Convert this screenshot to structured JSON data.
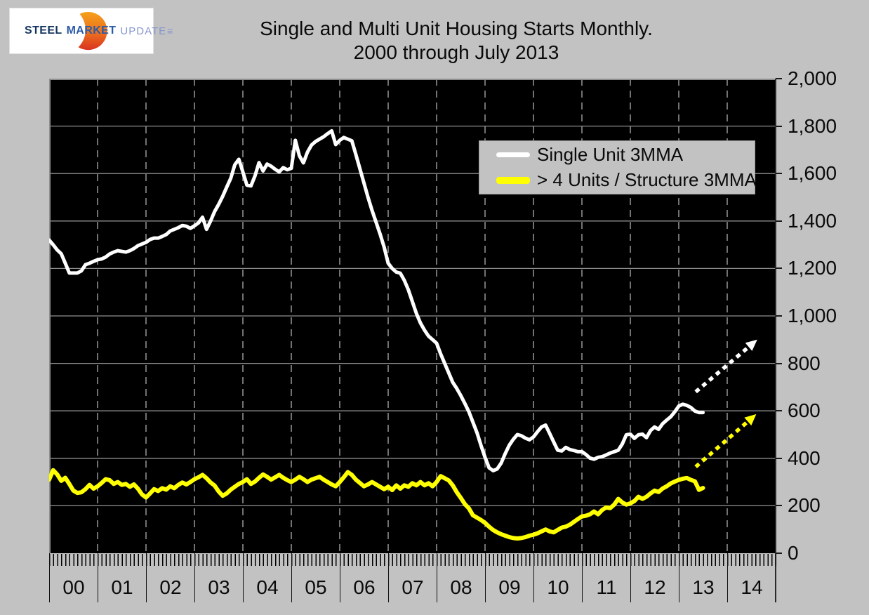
{
  "logo": {
    "words": {
      "steel": "STEEL",
      "market": "MARKET",
      "update": "UPDATE"
    },
    "glyph": "≡",
    "colors": {
      "steel": "#15355e",
      "market": "#2a5aa8",
      "update": "#8695cc",
      "crescent_top": "#f5a11c",
      "crescent_mid": "#ec6f1d",
      "crescent_bottom": "#d93420"
    }
  },
  "title": {
    "line1": "Single and Multi Unit Housing Starts Monthly.",
    "line2": "2000 through July 2013"
  },
  "colors": {
    "page_background": "#c2c2c2",
    "plot_background": "#000000",
    "grid": "#8f8f8f",
    "axis": "#1a1a1a",
    "single_unit": "#ffffff",
    "multi_unit": "#ffff00"
  },
  "chart_data": {
    "type": "line",
    "title": "Single and Multi Unit Housing Starts Monthly. 2000 through July 2013",
    "x_unit": "month",
    "x_start": "2000-01",
    "x_end": "2013-07",
    "x_axis_years": [
      "00",
      "01",
      "02",
      "03",
      "04",
      "05",
      "06",
      "07",
      "08",
      "09",
      "10",
      "11",
      "12",
      "13",
      "14"
    ],
    "x_axis_span_years": 15,
    "y_axis": {
      "min": 0,
      "max": 2000,
      "step": 200,
      "tick_labels": [
        "0",
        "200",
        "400",
        "600",
        "800",
        "1,000",
        "1,200",
        "1,400",
        "1,600",
        "1,800",
        "2,000"
      ]
    },
    "grid": {
      "horizontal": "solid",
      "vertical": "dashed"
    },
    "legend_position": "inside-top-right",
    "legend": [
      {
        "label": "Single Unit 3MMA",
        "color": "#ffffff",
        "swatch_height": 7
      },
      {
        "label": "> 4 Units / Structure 3MMA",
        "color": "#ffff00",
        "swatch_height": 10
      }
    ],
    "series": [
      {
        "name": "Single Unit 3MMA",
        "color": "#ffffff",
        "width": 5,
        "values": [
          1320,
          1300,
          1278,
          1262,
          1222,
          1181,
          1181,
          1181,
          1190,
          1216,
          1222,
          1230,
          1237,
          1240,
          1248,
          1261,
          1269,
          1275,
          1272,
          1269,
          1275,
          1284,
          1296,
          1303,
          1310,
          1322,
          1328,
          1328,
          1335,
          1343,
          1358,
          1365,
          1372,
          1381,
          1378,
          1369,
          1380,
          1392,
          1416,
          1365,
          1400,
          1440,
          1470,
          1504,
          1543,
          1580,
          1637,
          1660,
          1607,
          1551,
          1548,
          1590,
          1646,
          1611,
          1640,
          1631,
          1618,
          1607,
          1625,
          1616,
          1622,
          1740,
          1675,
          1645,
          1690,
          1720,
          1735,
          1745,
          1755,
          1768,
          1780,
          1722,
          1740,
          1752,
          1745,
          1738,
          1680,
          1620,
          1560,
          1500,
          1445,
          1395,
          1345,
          1290,
          1222,
          1200,
          1185,
          1180,
          1150,
          1110,
          1060,
          1010,
          970,
          940,
          915,
          900,
          885,
          840,
          800,
          760,
          720,
          694,
          664,
          631,
          596,
          552,
          508,
          454,
          404,
          360,
          348,
          355,
          380,
          420,
          455,
          480,
          500,
          495,
          485,
          478,
          490,
          512,
          532,
          540,
          505,
          469,
          434,
          431,
          446,
          437,
          433,
          428,
          428,
          416,
          401,
          396,
          404,
          407,
          414,
          422,
          428,
          434,
          460,
          499,
          502,
          484,
          499,
          502,
          487,
          517,
          532,
          522,
          546,
          561,
          575,
          596,
          620,
          628,
          623,
          614,
          599,
          593,
          593
        ]
      },
      {
        "name": "> 4 Units / Structure 3MMA",
        "color": "#ffff00",
        "width": 6,
        "values": [
          310,
          350,
          332,
          305,
          318,
          292,
          264,
          254,
          257,
          270,
          288,
          272,
          282,
          296,
          312,
          308,
          292,
          300,
          288,
          292,
          280,
          290,
          272,
          248,
          235,
          252,
          270,
          262,
          274,
          268,
          282,
          274,
          288,
          298,
          290,
          300,
          312,
          320,
          330,
          316,
          298,
          285,
          260,
          242,
          252,
          268,
          280,
          292,
          300,
          312,
          292,
          302,
          318,
          332,
          322,
          310,
          320,
          330,
          318,
          308,
          300,
          310,
          322,
          312,
          300,
          310,
          316,
          322,
          310,
          300,
          290,
          282,
          300,
          320,
          342,
          330,
          310,
          296,
          282,
          290,
          300,
          290,
          280,
          270,
          280,
          266,
          286,
          272,
          286,
          280,
          295,
          286,
          300,
          286,
          295,
          282,
          300,
          325,
          316,
          307,
          286,
          257,
          233,
          207,
          189,
          160,
          150,
          140,
          128,
          112,
          98,
          88,
          80,
          74,
          68,
          64,
          62,
          64,
          68,
          74,
          78,
          84,
          92,
          100,
          92,
          88,
          98,
          108,
          112,
          120,
          132,
          144,
          155,
          158,
          164,
          176,
          164,
          182,
          193,
          190,
          205,
          229,
          214,
          205,
          210,
          220,
          238,
          229,
          238,
          252,
          264,
          258,
          273,
          282,
          294,
          302,
          309,
          314,
          317,
          309,
          303,
          267,
          275
        ]
      }
    ],
    "annotations": [
      {
        "type": "arrow",
        "style": "dotted",
        "color": "#ffffff",
        "from": {
          "year": 2013.35,
          "value": 680
        },
        "to": {
          "year": 2014.62,
          "value": 900
        }
      },
      {
        "type": "arrow",
        "style": "dotted",
        "color": "#ffff00",
        "from": {
          "year": 2013.35,
          "value": 364
        },
        "to": {
          "year": 2014.6,
          "value": 586
        }
      }
    ]
  }
}
